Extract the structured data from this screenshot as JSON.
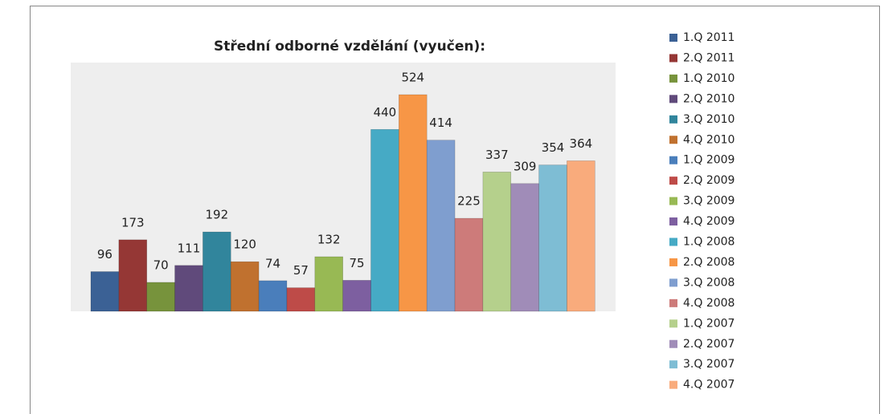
{
  "chart_data": {
    "type": "bar",
    "title": "Střední odborné vzdělání (vyučen):",
    "categories": [
      null
    ],
    "series": [
      {
        "name": "1.Q 2011",
        "color": "#3b6195",
        "values": [
          96
        ]
      },
      {
        "name": "2.Q 2011",
        "color": "#953735",
        "values": [
          173
        ]
      },
      {
        "name": "1.Q 2010",
        "color": "#77933c",
        "values": [
          70
        ]
      },
      {
        "name": "2.Q 2010",
        "color": "#604a7b",
        "values": [
          111
        ]
      },
      {
        "name": "3.Q 2010",
        "color": "#31859c",
        "values": [
          192
        ]
      },
      {
        "name": "4.Q 2010",
        "color": "#c0712f",
        "values": [
          120
        ]
      },
      {
        "name": "1.Q 2009",
        "color": "#4a7ebb",
        "values": [
          74
        ]
      },
      {
        "name": "2.Q 2009",
        "color": "#be4b48",
        "values": [
          57
        ]
      },
      {
        "name": "3.Q 2009",
        "color": "#98b954",
        "values": [
          132
        ]
      },
      {
        "name": "4.Q 2009",
        "color": "#7d5fa0",
        "values": [
          75
        ]
      },
      {
        "name": "1.Q 2008",
        "color": "#46aac5",
        "values": [
          440
        ]
      },
      {
        "name": "2.Q 2008",
        "color": "#f79646",
        "values": [
          524
        ]
      },
      {
        "name": "3.Q 2008",
        "color": "#7f9ecf",
        "values": [
          414
        ]
      },
      {
        "name": "4.Q 2008",
        "color": "#cd7b7a",
        "values": [
          225
        ]
      },
      {
        "name": "1.Q 2007",
        "color": "#b5d08c",
        "values": [
          337
        ]
      },
      {
        "name": "2.Q 2007",
        "color": "#a08cb8",
        "values": [
          309
        ]
      },
      {
        "name": "3.Q 2007",
        "color": "#7ebdd4",
        "values": [
          354
        ]
      },
      {
        "name": "4.Q 2007",
        "color": "#f9ab7c",
        "values": [
          364
        ]
      }
    ]
  }
}
